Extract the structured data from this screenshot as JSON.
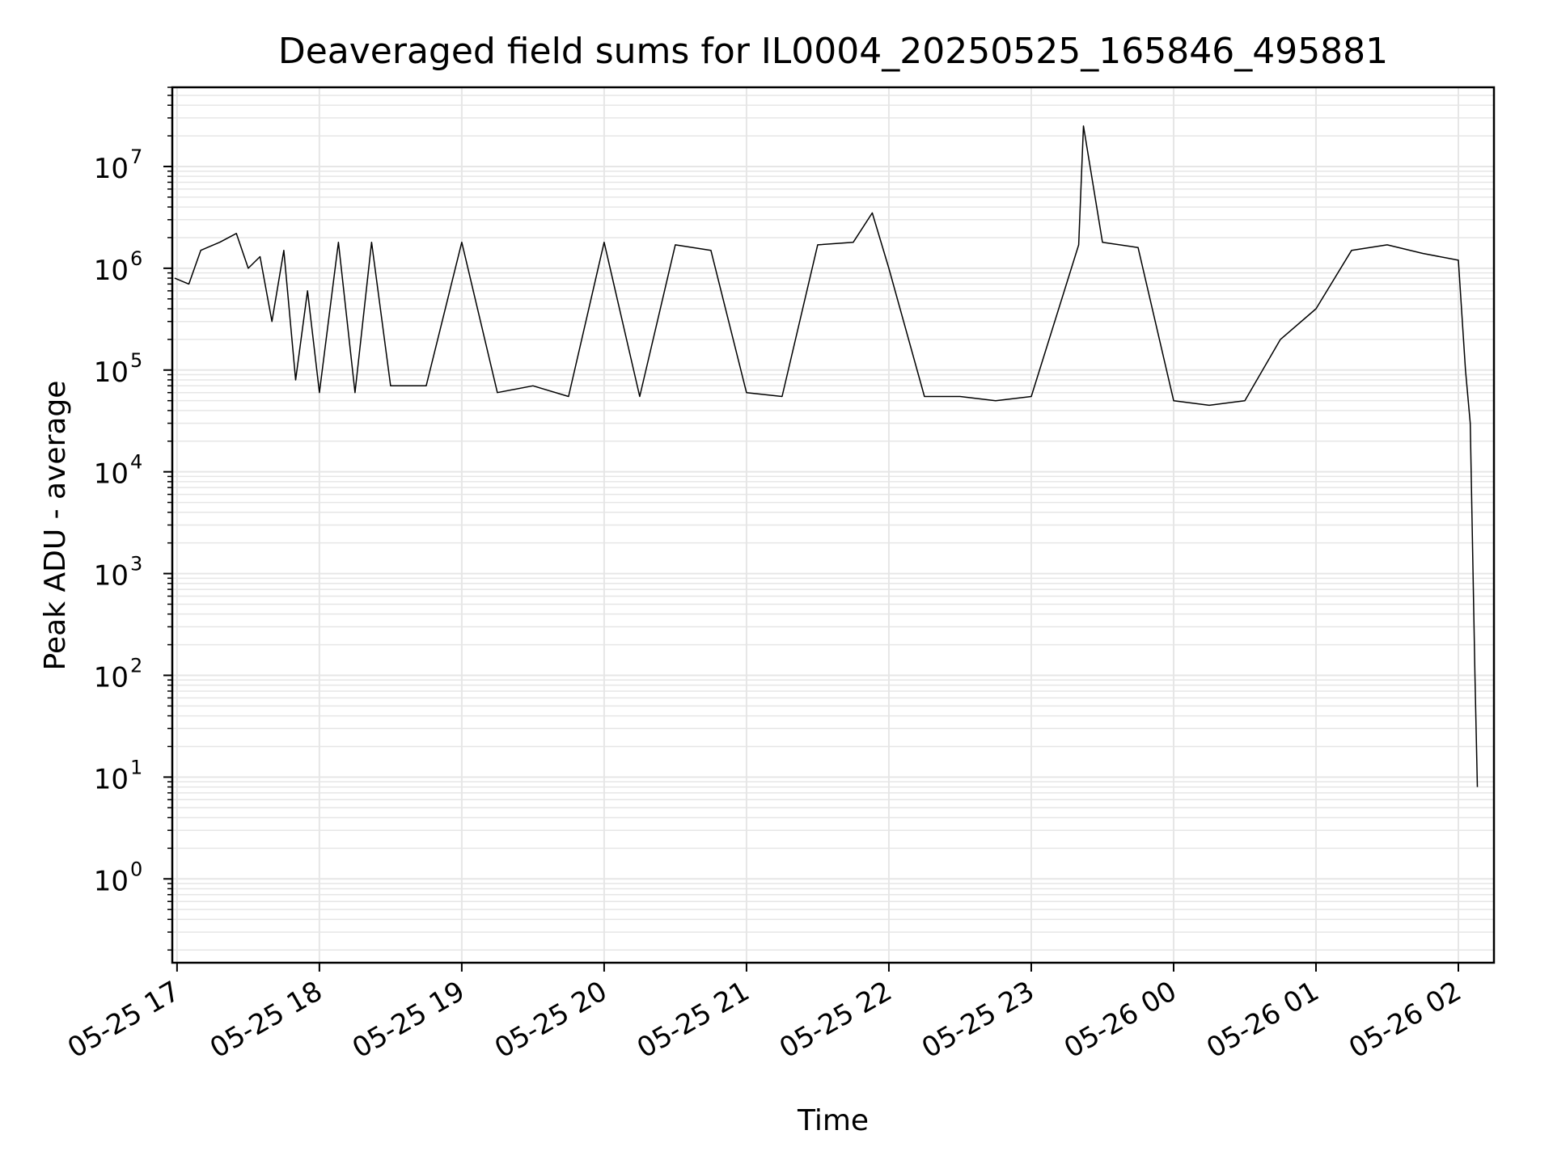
{
  "chart_data": {
    "type": "line",
    "title": "Deaveraged field sums for IL0004_20250525_165846_495881",
    "xlabel": "Time",
    "ylabel": "Peak ADU - average",
    "x_tick_labels": [
      "05-25 17",
      "05-25 18",
      "05-25 19",
      "05-25 20",
      "05-25 21",
      "05-25 22",
      "05-25 23",
      "05-26 00",
      "05-26 01",
      "05-26 02"
    ],
    "x_tick_times": [
      "2025-05-25 17:00",
      "2025-05-25 18:00",
      "2025-05-25 19:00",
      "2025-05-25 20:00",
      "2025-05-25 21:00",
      "2025-05-25 22:00",
      "2025-05-25 23:00",
      "2025-05-26 00:00",
      "2025-05-26 01:00",
      "2025-05-26 02:00"
    ],
    "xlim": [
      "2025-05-25 16:58",
      "2025-05-26 02:15"
    ],
    "y_scale": "log",
    "ylim": [
      0.15,
      60000000
    ],
    "y_tick_values": [
      1,
      10,
      100,
      1000,
      10000,
      100000,
      1000000,
      10000000
    ],
    "y_tick_labels": [
      {
        "base": "10",
        "exp": "0"
      },
      {
        "base": "10",
        "exp": "1"
      },
      {
        "base": "10",
        "exp": "2"
      },
      {
        "base": "10",
        "exp": "3"
      },
      {
        "base": "10",
        "exp": "4"
      },
      {
        "base": "10",
        "exp": "5"
      },
      {
        "base": "10",
        "exp": "6"
      },
      {
        "base": "10",
        "exp": "7"
      }
    ],
    "grid": true,
    "minor_grid": true,
    "line_color": "#000000",
    "grid_color": "#e6e6e6",
    "series": [
      {
        "values": [
          [
            "2025-05-25 16:59",
            800000
          ],
          [
            "2025-05-25 17:05",
            700000
          ],
          [
            "2025-05-25 17:10",
            1500000
          ],
          [
            "2025-05-25 17:18",
            1800000
          ],
          [
            "2025-05-25 17:25",
            2200000
          ],
          [
            "2025-05-25 17:30",
            1000000
          ],
          [
            "2025-05-25 17:35",
            1300000
          ],
          [
            "2025-05-25 17:40",
            300000
          ],
          [
            "2025-05-25 17:45",
            1500000
          ],
          [
            "2025-05-25 17:50",
            80000
          ],
          [
            "2025-05-25 17:55",
            600000
          ],
          [
            "2025-05-25 18:00",
            60000
          ],
          [
            "2025-05-25 18:08",
            1800000
          ],
          [
            "2025-05-25 18:15",
            60000
          ],
          [
            "2025-05-25 18:22",
            1800000
          ],
          [
            "2025-05-25 18:30",
            70000
          ],
          [
            "2025-05-25 18:45",
            70000
          ],
          [
            "2025-05-25 19:00",
            1800000
          ],
          [
            "2025-05-25 19:15",
            60000
          ],
          [
            "2025-05-25 19:30",
            70000
          ],
          [
            "2025-05-25 19:45",
            55000
          ],
          [
            "2025-05-25 20:00",
            1800000
          ],
          [
            "2025-05-25 20:15",
            55000
          ],
          [
            "2025-05-25 20:30",
            1700000
          ],
          [
            "2025-05-25 20:45",
            1500000
          ],
          [
            "2025-05-25 21:00",
            60000
          ],
          [
            "2025-05-25 21:15",
            55000
          ],
          [
            "2025-05-25 21:30",
            1700000
          ],
          [
            "2025-05-25 21:45",
            1800000
          ],
          [
            "2025-05-25 21:53",
            3500000
          ],
          [
            "2025-05-25 22:00",
            1000000
          ],
          [
            "2025-05-25 22:15",
            55000
          ],
          [
            "2025-05-25 22:30",
            55000
          ],
          [
            "2025-05-25 22:45",
            50000
          ],
          [
            "2025-05-25 23:00",
            55000
          ],
          [
            "2025-05-25 23:20",
            1700000
          ],
          [
            "2025-05-25 23:22",
            25000000
          ],
          [
            "2025-05-25 23:30",
            1800000
          ],
          [
            "2025-05-25 23:45",
            1600000
          ],
          [
            "2025-05-26 00:00",
            50000
          ],
          [
            "2025-05-26 00:15",
            45000
          ],
          [
            "2025-05-26 00:30",
            50000
          ],
          [
            "2025-05-26 00:45",
            200000
          ],
          [
            "2025-05-26 01:00",
            400000
          ],
          [
            "2025-05-26 01:15",
            1500000
          ],
          [
            "2025-05-26 01:30",
            1700000
          ],
          [
            "2025-05-26 01:45",
            1400000
          ],
          [
            "2025-05-26 02:00",
            1200000
          ],
          [
            "2025-05-26 02:03",
            100000
          ],
          [
            "2025-05-26 02:05",
            30000
          ],
          [
            "2025-05-26 02:07",
            100
          ],
          [
            "2025-05-26 02:08",
            8
          ]
        ]
      }
    ]
  }
}
